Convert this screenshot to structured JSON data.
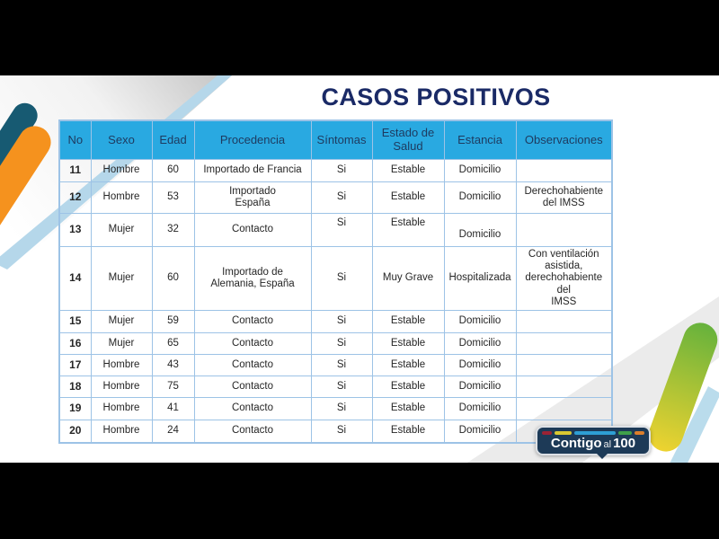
{
  "slide": {
    "title": "CASOS POSITIVOS",
    "title_color": "#1A2A66"
  },
  "table": {
    "header_bg": "#29A9E1",
    "header_text_color": "#1E3A5F",
    "border_color": "#9DC3E6",
    "body_text_color": "#262626",
    "headers": [
      "No",
      "Sexo",
      "Edad",
      "Procedencia",
      "Síntomas",
      "Estado de Salud",
      "Estancia",
      "Observaciones"
    ],
    "rows": [
      [
        "11",
        "Hombre",
        "60",
        "Importado de Francia",
        "Si",
        "Estable",
        "Domicilio",
        ""
      ],
      [
        "12",
        "Hombre",
        "53",
        "Importado\nEspaña",
        "Si",
        "Estable",
        "Domicilio",
        "Derechohabiente\ndel IMSS"
      ],
      [
        "13",
        "Mujer",
        "32",
        "Contacto",
        "Si",
        "Estable",
        "Domicilio",
        ""
      ],
      [
        "14",
        "Mujer",
        "60",
        "Importado de\nAlemania, España",
        "Si",
        "Muy Grave",
        "Hospitalizada",
        "Con ventilación\nasistida,\nderechohabiente\ndel\nIMSS"
      ],
      [
        "15",
        "Mujer",
        "59",
        "Contacto",
        "Si",
        "Estable",
        "Domicilio",
        ""
      ],
      [
        "16",
        "Mujer",
        "65",
        "Contacto",
        "Si",
        "Estable",
        "Domicilio",
        ""
      ],
      [
        "17",
        "Hombre",
        "43",
        "Contacto",
        "Si",
        "Estable",
        "Domicilio",
        ""
      ],
      [
        "18",
        "Hombre",
        "75",
        "Contacto",
        "Si",
        "Estable",
        "Domicilio",
        ""
      ],
      [
        "19",
        "Hombre",
        "41",
        "Contacto",
        "Si",
        "Estable",
        "Domicilio",
        ""
      ],
      [
        "20",
        "Hombre",
        "24",
        "Contacto",
        "Si",
        "Estable",
        "Domicilio",
        ""
      ]
    ]
  },
  "logo": {
    "bg": "#1D3A57",
    "text_main": "Contigo",
    "text_mid": "al",
    "text_num": "100",
    "dash_colors": [
      "#9B2335",
      "#D9C832",
      "#2E9FD4",
      "#3FA14A",
      "#DC7E2B"
    ]
  },
  "decor": {
    "teal": "#175A72",
    "orange": "#F5921E",
    "band_gray": "#C4C4C4",
    "band_blue": "#B5D7EA",
    "swoosh_gray": "#EBEBEB",
    "green": "#66B23C",
    "yellow": "#EED330",
    "right_blue": "#BADCEC",
    "letterbox": "#000000"
  }
}
